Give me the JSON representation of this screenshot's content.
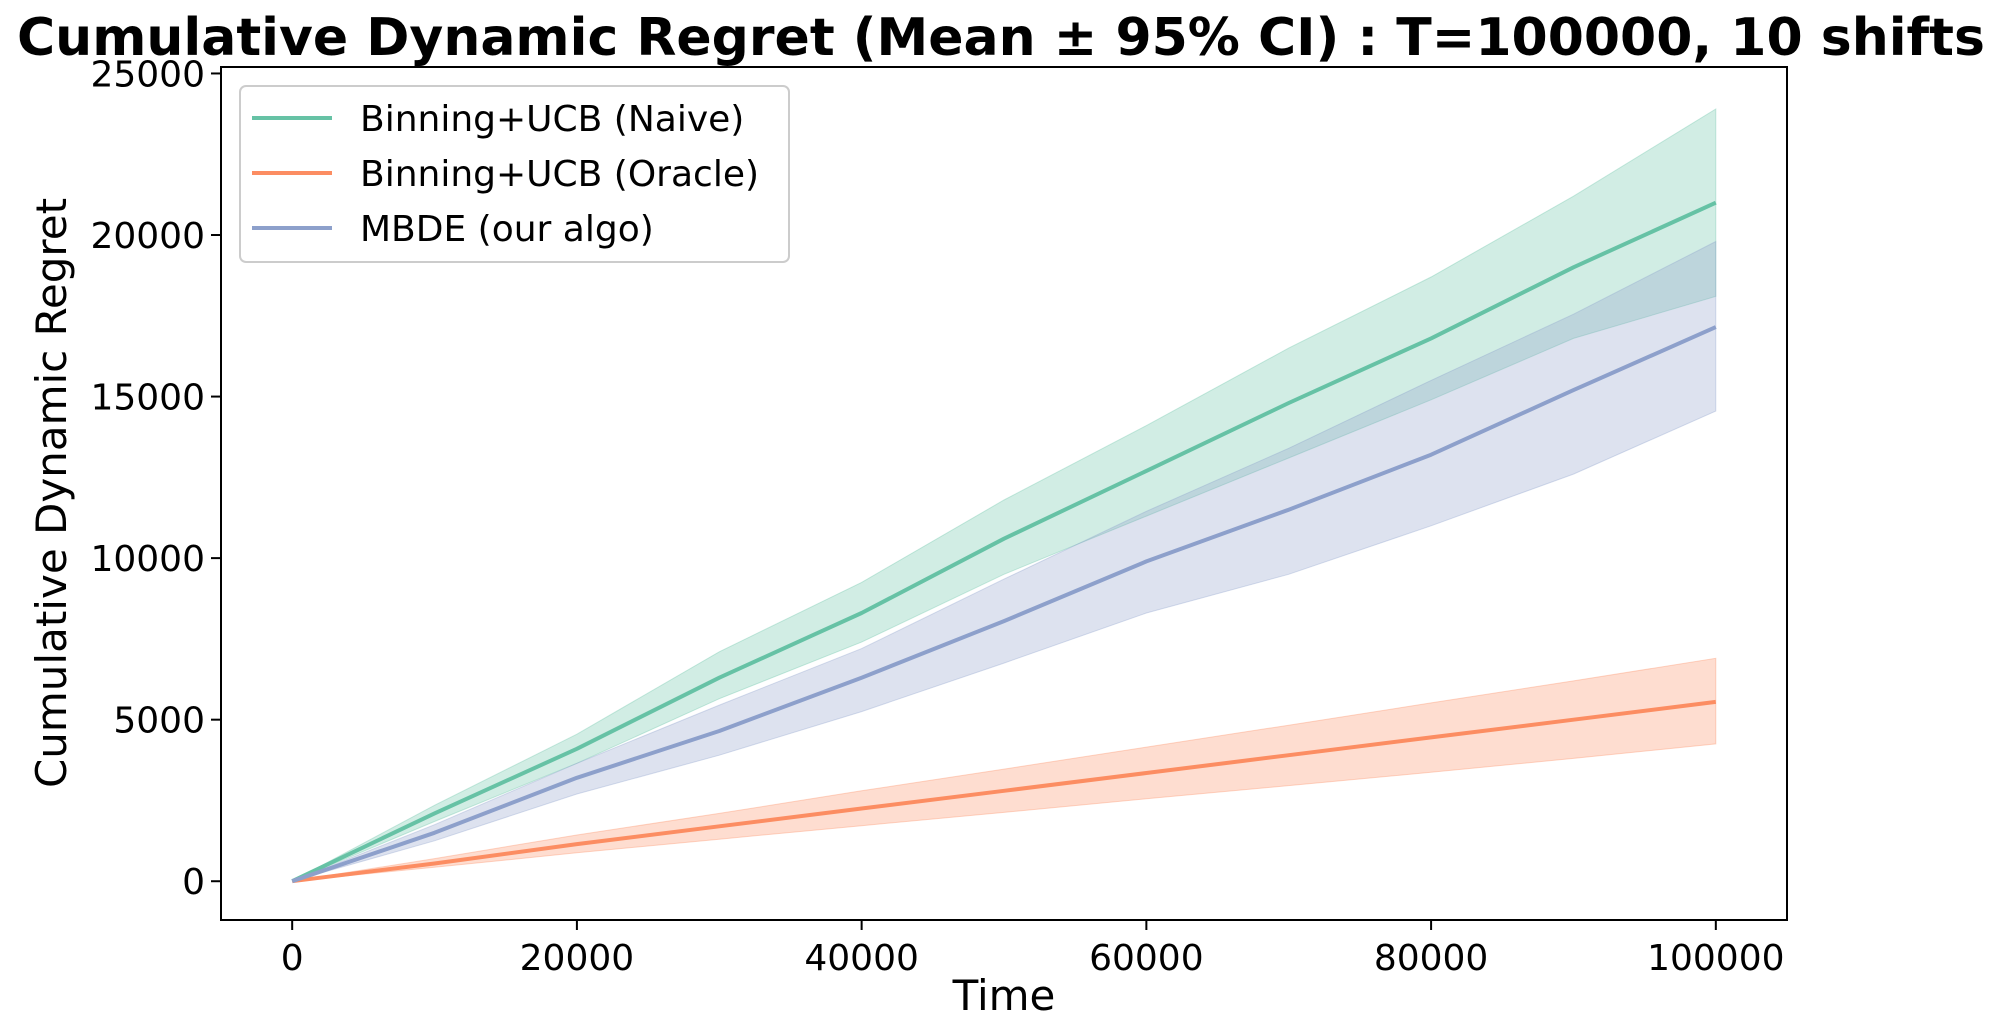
{
  "chart_data": {
    "type": "line",
    "title": "Cumulative Dynamic Regret (Mean ± 95% CI) : T=100000, 10 shifts",
    "xlabel": "Time",
    "ylabel": "Cumulative Dynamic Regret",
    "xlim": [
      -5000,
      105000
    ],
    "ylim": [
      -1200,
      25200
    ],
    "xticks": [
      0,
      20000,
      40000,
      60000,
      80000,
      100000
    ],
    "yticks": [
      0,
      5000,
      10000,
      15000,
      20000,
      25000
    ],
    "grid": false,
    "legend_position": "upper-left",
    "x": [
      0,
      10000,
      20000,
      30000,
      40000,
      50000,
      60000,
      70000,
      80000,
      90000,
      100000
    ],
    "series": [
      {
        "name": "Binning+UCB (Naive)",
        "color": "#66c2a5",
        "values": [
          0,
          2100,
          4100,
          6300,
          8300,
          10600,
          12700,
          14800,
          16800,
          19000,
          21000
        ],
        "lower": [
          0,
          1850,
          3650,
          5650,
          7400,
          9500,
          11300,
          13100,
          14900,
          16800,
          18100
        ],
        "upper": [
          0,
          2350,
          4550,
          7100,
          9250,
          11800,
          14100,
          16500,
          18700,
          21200,
          23900
        ]
      },
      {
        "name": "Binning+UCB (Oracle)",
        "color": "#fc8d62",
        "values": [
          0,
          550,
          1150,
          1700,
          2250,
          2800,
          3350,
          3900,
          4450,
          5000,
          5550
        ],
        "lower": [
          0,
          430,
          880,
          1300,
          1720,
          2130,
          2550,
          2960,
          3370,
          3800,
          4250
        ],
        "upper": [
          0,
          700,
          1430,
          2100,
          2800,
          3470,
          4150,
          4830,
          5520,
          6200,
          6900
        ]
      },
      {
        "name": "MBDE (our algo)",
        "color": "#8da0cb",
        "values": [
          0,
          1500,
          3200,
          4650,
          6300,
          8050,
          9900,
          11500,
          13200,
          15200,
          17150
        ],
        "lower": [
          0,
          1250,
          2700,
          3900,
          5250,
          6750,
          8300,
          9500,
          11000,
          12600,
          14550
        ],
        "upper": [
          0,
          1750,
          3650,
          5450,
          7200,
          9350,
          11450,
          13400,
          15500,
          17550,
          19800
        ]
      }
    ]
  }
}
